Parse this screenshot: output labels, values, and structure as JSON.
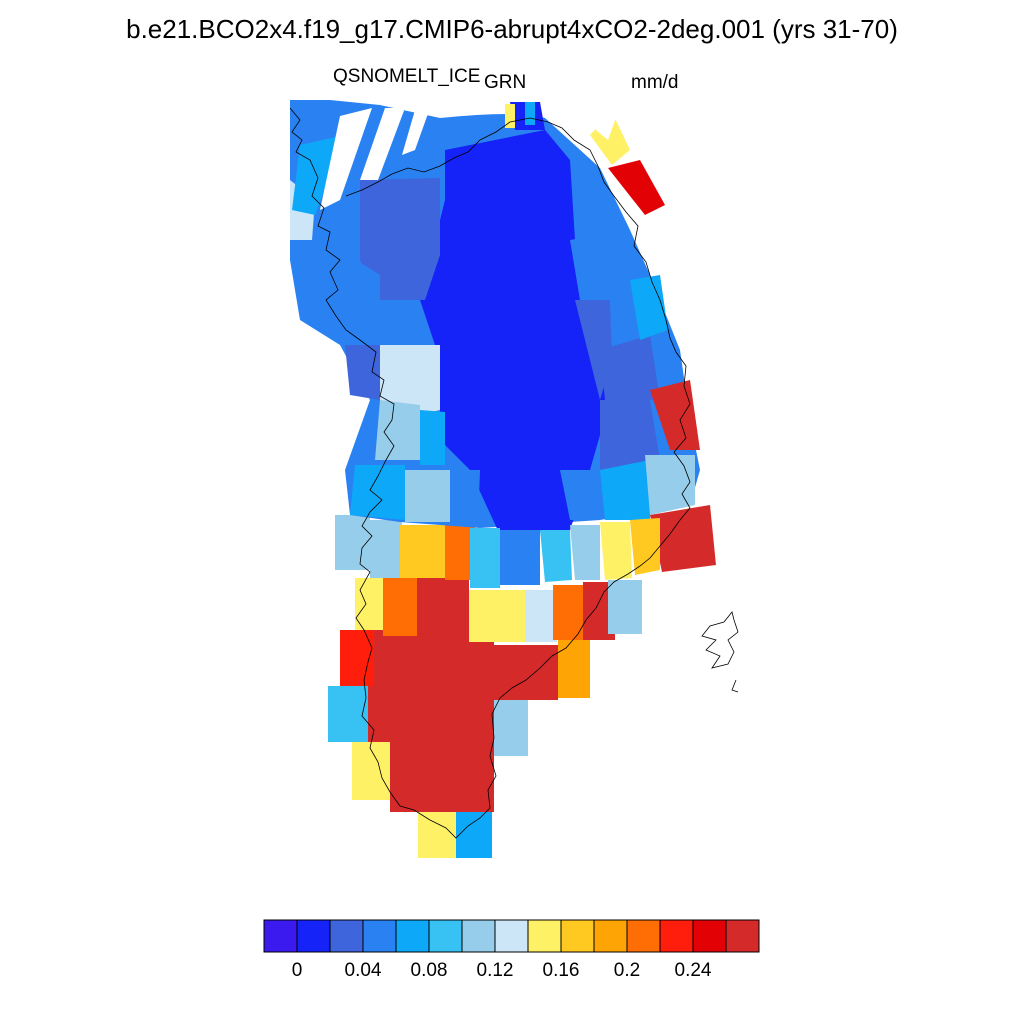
{
  "title": "b.e21.BCO2x4.f19_g17.CMIP6-abrupt4xCO2-2deg.001 (yrs 31-70)",
  "variable": "QSNOMELT_ICE",
  "region": "GRN",
  "units": "mm/d",
  "colorbar": {
    "ticks": [
      "0",
      "0.04",
      "0.08",
      "0.12",
      "0.16",
      "0.2",
      "0.24"
    ],
    "colors": [
      "#3a1aee",
      "#1522f8",
      "#3e65dc",
      "#2a82f2",
      "#0ea8f8",
      "#38c2f4",
      "#96cdea",
      "#cce6f8",
      "#fff166",
      "#ffc921",
      "#ffa405",
      "#ff6e04",
      "#ff1d0c",
      "#e20206",
      "#d52a2a"
    ]
  }
}
